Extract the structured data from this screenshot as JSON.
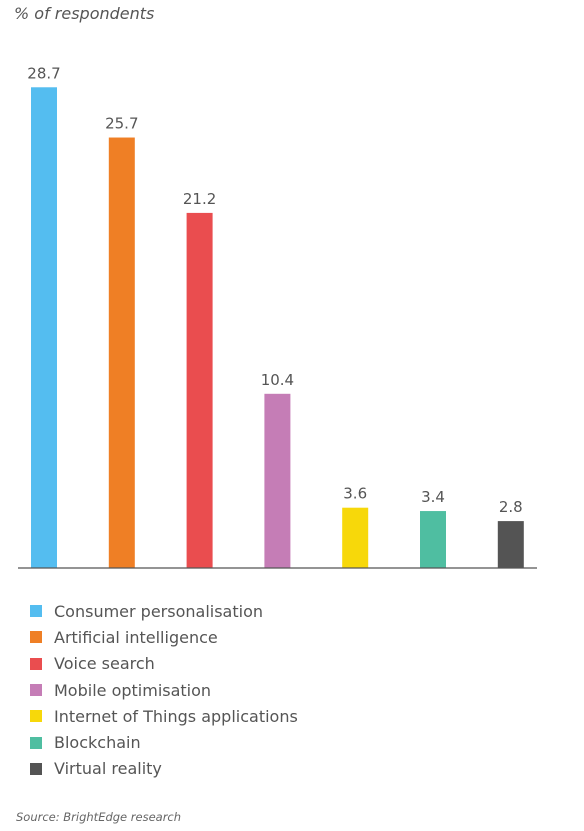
{
  "chart_data": {
    "type": "bar",
    "ylabel": "% of respondents",
    "categories": [
      "Consumer personalisation",
      "Artificial intelligence",
      "Voice search",
      "Mobile optimisation",
      "Internet of Things applications",
      "Blockchain",
      "Virtual reality"
    ],
    "values": [
      28.7,
      25.7,
      21.2,
      10.4,
      3.6,
      3.4,
      2.8
    ],
    "colors": [
      "#54bdf0",
      "#ef7f25",
      "#ea4d4f",
      "#c57db6",
      "#f7d80a",
      "#4fbea1",
      "#545454"
    ],
    "ylim": [
      0,
      32
    ],
    "grid": false,
    "legend_position": "bottom",
    "source": "Source: BrightEdge research"
  }
}
